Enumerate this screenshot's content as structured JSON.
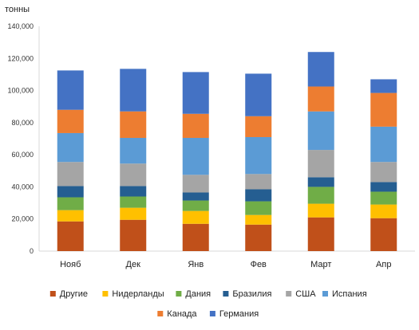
{
  "chart_data": {
    "type": "bar",
    "stacked": true,
    "ylabel": "тонны",
    "ylim": [
      0,
      140000
    ],
    "yticks": [
      "0",
      "20,000",
      "40,000",
      "60,000",
      "80,000",
      "100,000",
      "120,000",
      "140,000"
    ],
    "categories": [
      "Нояб",
      "Дек",
      "Янв",
      "Фев",
      "Март",
      "Апр"
    ],
    "series": [
      {
        "name": "Другие",
        "color": "#c0501a",
        "values": [
          18500,
          19500,
          17000,
          16500,
          21000,
          20500
        ]
      },
      {
        "name": "Нидерланды",
        "color": "#ffc000",
        "values": [
          7000,
          7500,
          8000,
          6000,
          8500,
          8500
        ]
      },
      {
        "name": "Дания",
        "color": "#70ad47",
        "values": [
          8000,
          7000,
          6500,
          8500,
          10500,
          8000
        ]
      },
      {
        "name": "Бразилия",
        "color": "#255e91",
        "values": [
          7000,
          6500,
          5000,
          7500,
          6000,
          6000
        ]
      },
      {
        "name": "США",
        "color": "#a5a5a5",
        "values": [
          15000,
          14000,
          11000,
          9500,
          17000,
          12500
        ]
      },
      {
        "name": "Испания",
        "color": "#5b9bd5",
        "values": [
          18000,
          16000,
          23000,
          23000,
          24000,
          22000
        ]
      },
      {
        "name": "Канада",
        "color": "#ed7d31",
        "values": [
          14500,
          16500,
          15000,
          13000,
          15500,
          21000
        ]
      },
      {
        "name": "Германия",
        "color": "#4472c4",
        "values": [
          24500,
          26500,
          26000,
          26500,
          21500,
          8500
        ]
      }
    ],
    "grid": false,
    "legend_position": "bottom"
  }
}
